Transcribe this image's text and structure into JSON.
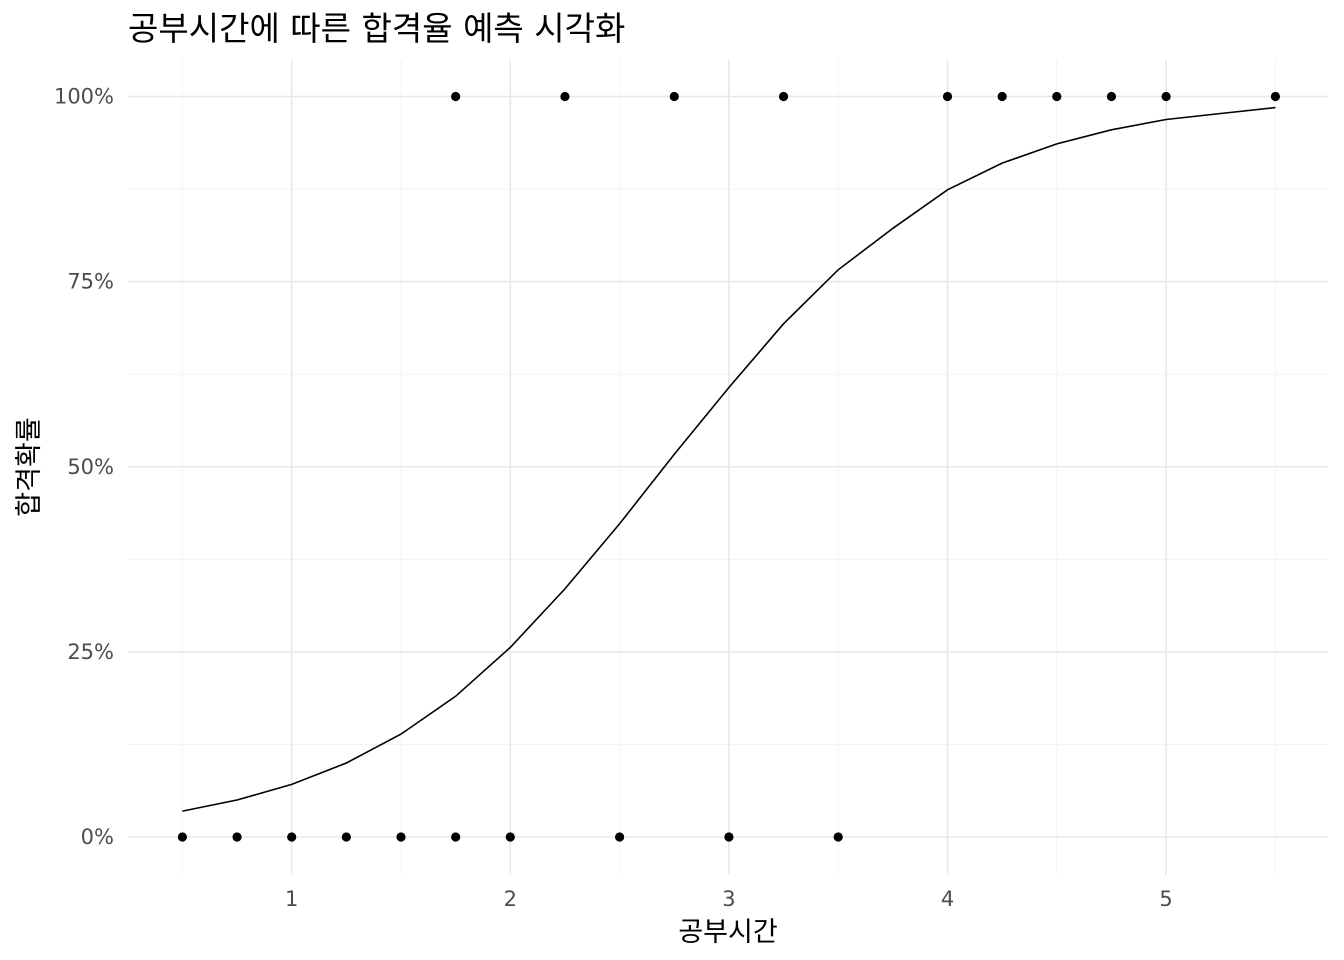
{
  "chart_data": {
    "type": "scatter",
    "title": "공부시간에 따른 합격율 예측 시각화",
    "xlabel": "공부시간",
    "ylabel": "합격확률",
    "xlim": [
      0.5,
      5.5
    ],
    "ylim": [
      0,
      1
    ],
    "x_ticks": [
      1,
      2,
      3,
      4,
      5
    ],
    "x_tick_labels": [
      "1",
      "2",
      "3",
      "4",
      "5"
    ],
    "y_ticks": [
      0,
      0.25,
      0.5,
      0.75,
      1
    ],
    "y_tick_labels": [
      "0%",
      "25%",
      "50%",
      "75%",
      "100%"
    ],
    "grid": true,
    "legend": "none",
    "series": [
      {
        "type": "scatter",
        "points": [
          {
            "x": 0.5,
            "y": 0
          },
          {
            "x": 0.75,
            "y": 0
          },
          {
            "x": 1.0,
            "y": 0
          },
          {
            "x": 1.25,
            "y": 0
          },
          {
            "x": 1.5,
            "y": 0
          },
          {
            "x": 1.75,
            "y": 0
          },
          {
            "x": 1.75,
            "y": 1
          },
          {
            "x": 2.0,
            "y": 0
          },
          {
            "x": 2.25,
            "y": 1
          },
          {
            "x": 2.5,
            "y": 0
          },
          {
            "x": 2.75,
            "y": 1
          },
          {
            "x": 3.0,
            "y": 0
          },
          {
            "x": 3.25,
            "y": 1
          },
          {
            "x": 3.5,
            "y": 0
          },
          {
            "x": 4.0,
            "y": 1
          },
          {
            "x": 4.25,
            "y": 1
          },
          {
            "x": 4.5,
            "y": 1
          },
          {
            "x": 4.75,
            "y": 1
          },
          {
            "x": 5.0,
            "y": 1
          },
          {
            "x": 5.5,
            "y": 1
          }
        ]
      },
      {
        "type": "line",
        "points": [
          {
            "x": 0.5,
            "y": 0.035
          },
          {
            "x": 0.75,
            "y": 0.05
          },
          {
            "x": 1.0,
            "y": 0.071
          },
          {
            "x": 1.25,
            "y": 0.1
          },
          {
            "x": 1.5,
            "y": 0.139
          },
          {
            "x": 1.75,
            "y": 0.19
          },
          {
            "x": 2.0,
            "y": 0.256
          },
          {
            "x": 2.25,
            "y": 0.335
          },
          {
            "x": 2.5,
            "y": 0.423
          },
          {
            "x": 2.75,
            "y": 0.517
          },
          {
            "x": 3.0,
            "y": 0.607
          },
          {
            "x": 3.25,
            "y": 0.693
          },
          {
            "x": 3.5,
            "y": 0.766
          },
          {
            "x": 3.75,
            "y": 0.822
          },
          {
            "x": 4.0,
            "y": 0.874
          },
          {
            "x": 4.25,
            "y": 0.91
          },
          {
            "x": 4.5,
            "y": 0.936
          },
          {
            "x": 4.75,
            "y": 0.955
          },
          {
            "x": 5.0,
            "y": 0.969
          },
          {
            "x": 5.25,
            "y": 0.977
          },
          {
            "x": 5.5,
            "y": 0.985
          }
        ]
      }
    ]
  }
}
